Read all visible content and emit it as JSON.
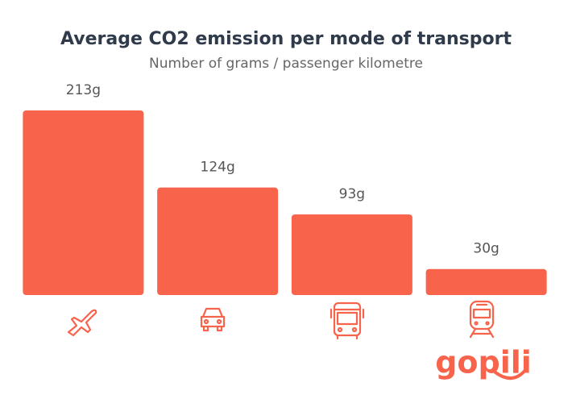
{
  "chart_data": {
    "type": "bar",
    "title": "Average CO2 emission per mode of transport",
    "subtitle": "Number of grams / passenger kilometre",
    "categories": [
      null,
      null,
      null,
      null
    ],
    "values": [
      213,
      124,
      93,
      30
    ],
    "value_labels": [
      "213g",
      "124g",
      "93g",
      "30g"
    ],
    "color": "#f7634b"
  },
  "logo": "gopili"
}
